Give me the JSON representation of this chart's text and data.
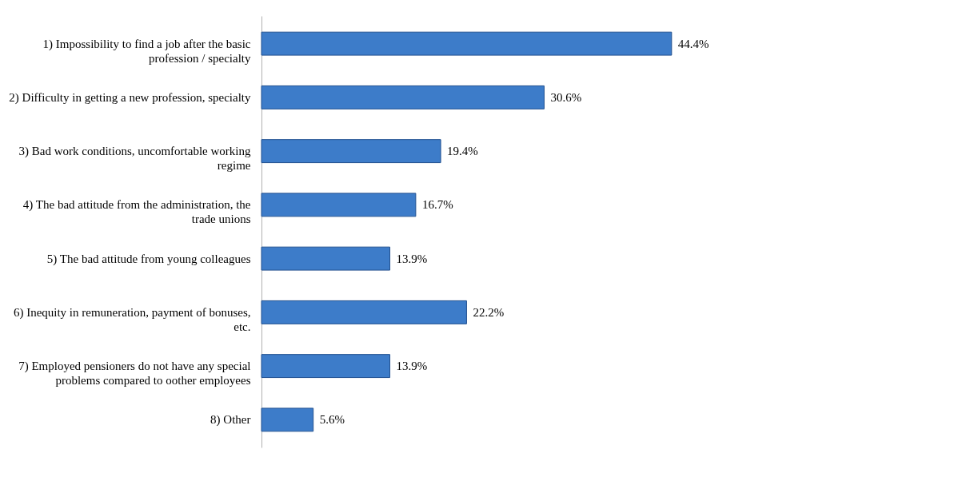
{
  "chart_data": {
    "type": "bar",
    "orientation": "horizontal",
    "categories": [
      "1) Impossibility to find a job after the basic\nprofession / specialty",
      "2) Difficulty in getting a new profession, specialty",
      "3) Bad work conditions, uncomfortable working\nregime",
      "4) The bad attitude from the administration, the\ntrade unions",
      "5) The bad attitude from young colleagues",
      "6) Inequity in remuneration, payment of bonuses,\netc.",
      "7) Employed pensioners do not have any special\nproblems compared to oother employees",
      "8) Other"
    ],
    "values": [
      44.4,
      30.6,
      19.4,
      16.7,
      13.9,
      22.2,
      13.9,
      5.6
    ],
    "value_labels": [
      "44.4%",
      "30.6%",
      "19.4%",
      "16.7%",
      "13.9%",
      "22.2%",
      "13.9%",
      "5.6%"
    ],
    "color": "#3d7cc9",
    "grid": false
  }
}
